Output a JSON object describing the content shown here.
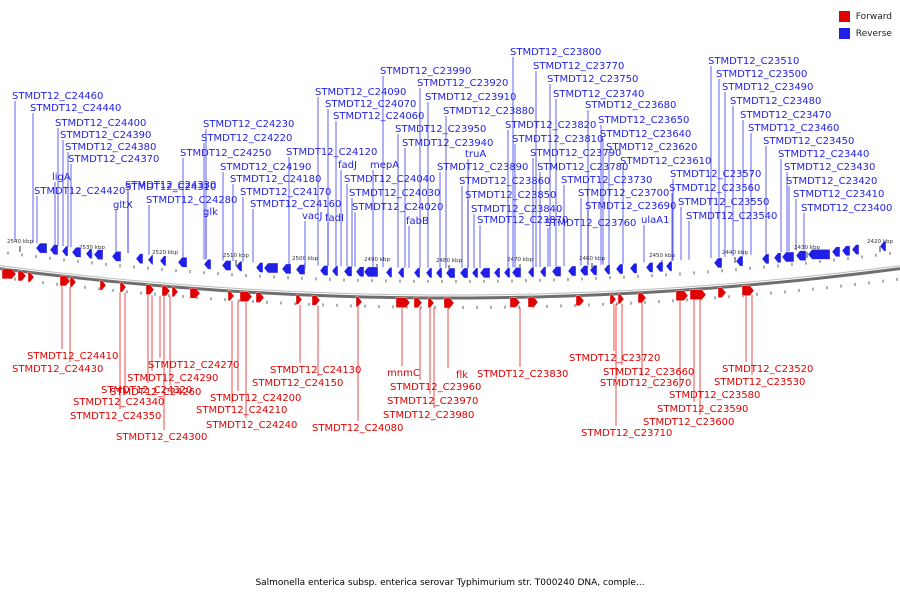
{
  "legend": {
    "forward_label": "Forward",
    "reverse_label": "Reverse",
    "forward_color": "#e00000",
    "reverse_color": "#1f1fe6"
  },
  "caption": "Salmonella enterica subsp. enterica serovar Typhimurium str. T000240 DNA, comple...",
  "scale": {
    "ticks": [
      "2540 kbp",
      "2530 kbp",
      "2520 kbp",
      "2510 kbp",
      "2500 kbp",
      "2490 kbp",
      "2480 kbp",
      "2470 kbp",
      "2460 kbp",
      "2450 kbp",
      "2440 kbp",
      "2430 kbp",
      "2420 kbp"
    ]
  },
  "reverse_labels": [
    "STMDT12_C24460",
    "STMDT12_C24440",
    "STMDT12_C24400",
    "STMDT12_C24390",
    "STMDT12_C24380",
    "STMDT12_C24370",
    "ligA",
    "STMDT12_C24330",
    "STMDT12_C24420",
    "STMDT12_C24310",
    "gltX",
    "STMDT12_C24280",
    "glk",
    "STMDT12_C24230",
    "STMDT12_C24220",
    "STMDT12_C24250",
    "STMDT12_C24190",
    "STMDT12_C24180",
    "STMDT12_C24170",
    "STMDT12_C24160",
    "vacJ",
    "fadI",
    "STMDT12_C24120",
    "fadJ",
    "STMDT12_C24090",
    "STMDT12_C24070",
    "STMDT12_C24060",
    "mepA",
    "STMDT12_C24040",
    "STMDT12_C24030",
    "STMDT12_C24020",
    "fabB",
    "STMDT12_C23990",
    "STMDT12_C23920",
    "STMDT12_C23910",
    "STMDT12_C23950",
    "STMDT12_C23940",
    "truA",
    "STMDT12_C23890",
    "STMDT12_C23880",
    "STMDT12_C23860",
    "STMDT12_C23850",
    "STMDT12_C23840",
    "STMDT12_C23870",
    "STMDT12_C23800",
    "STMDT12_C23770",
    "STMDT12_C23750",
    "STMDT12_C23740",
    "STMDT12_C23820",
    "STMDT12_C23810",
    "STMDT12_C23790",
    "STMDT12_C23780",
    "STMDT12_C23730",
    "STMDT12_C23760",
    "STMDT12_C23680",
    "STMDT12_C23650",
    "STMDT12_C23640",
    "STMDT12_C23620",
    "STMDT12_C23610",
    "STMDT12_C23700",
    "STMDT12_C23690",
    "ulaA1",
    "STMDT12_C23570",
    "STMDT12_C23560",
    "STMDT12_C23550",
    "STMDT12_C23540",
    "STMDT12_C23510",
    "STMDT12_C23500",
    "STMDT12_C23490",
    "STMDT12_C23480",
    "STMDT12_C23470",
    "STMDT12_C23460",
    "STMDT12_C23450",
    "STMDT12_C23440",
    "STMDT12_C23430",
    "STMDT12_C23420",
    "STMDT12_C23410",
    "STMDT12_C23400"
  ],
  "forward_labels": [
    "STMDT12_C24410",
    "STMDT12_C24430",
    "STMDT12_C24270",
    "STMDT12_C24290",
    "STMDT12_C24320",
    "STMDT12_C24340",
    "STMDT12_C24350",
    "STMDT12_C24300",
    "STMDT12_C24260",
    "STMDT12_C24200",
    "STMDT12_C24210",
    "STMDT12_C24240",
    "STMDT12_C24130",
    "STMDT12_C24150",
    "STMDT12_C24080",
    "mnmC",
    "STMDT12_C23960",
    "STMDT12_C23970",
    "STMDT12_C23980",
    "flk",
    "STMDT12_C23830",
    "STMDT12_C23720",
    "STMDT12_C23660",
    "STMDT12_C23670",
    "STMDT12_C23710",
    "STMDT12_C23580",
    "STMDT12_C23590",
    "STMDT12_C23600",
    "STMDT12_C23520",
    "STMDT12_C23530"
  ]
}
